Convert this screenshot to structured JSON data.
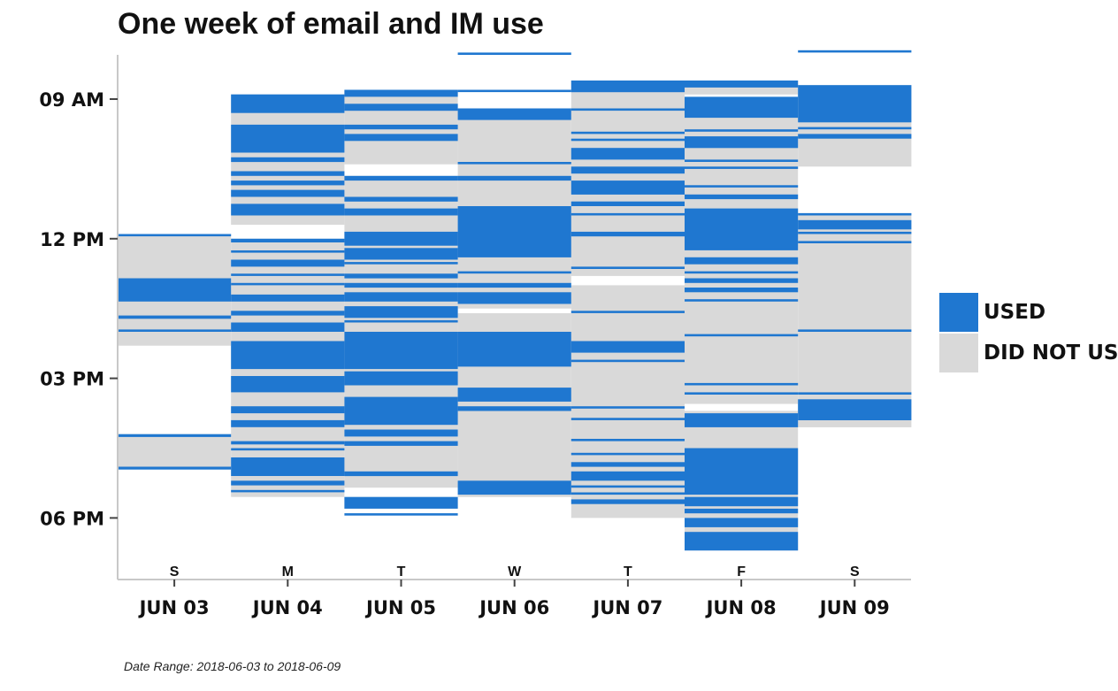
{
  "chart_data": {
    "type": "heatmap",
    "title": "One week of email and IM use",
    "caption": "Date Range: 2018-06-03 to 2018-06-09",
    "y_ticks": [
      "09 AM",
      "12 PM",
      "03 PM",
      "06 PM"
    ],
    "y_range_hours": [
      7.8,
      19.3
    ],
    "legend_position": "right",
    "legend": [
      {
        "label": "USED",
        "color": "#1f77d0"
      },
      {
        "label": "DID NOT USE",
        "color": "#d9d9d9"
      }
    ],
    "days": [
      {
        "weekday": "S",
        "date": "JUN 03",
        "grey": [
          [
            11.9,
            14.3
          ],
          [
            16.2,
            16.9
          ]
        ],
        "used": [
          [
            11.9,
            11.95
          ],
          [
            12.85,
            13.35
          ],
          [
            13.65,
            13.72
          ],
          [
            13.95,
            14.0
          ],
          [
            16.2,
            16.26
          ],
          [
            16.9,
            16.96
          ]
        ]
      },
      {
        "weekday": "M",
        "date": "JUN 04",
        "grey": [
          [
            8.9,
            11.7
          ],
          [
            12.0,
            17.55
          ]
        ],
        "used": [
          [
            8.9,
            9.3
          ],
          [
            9.55,
            10.15
          ],
          [
            10.25,
            10.35
          ],
          [
            10.55,
            10.65
          ],
          [
            10.75,
            10.85
          ],
          [
            10.95,
            11.1
          ],
          [
            11.25,
            11.5
          ],
          [
            12.0,
            12.08
          ],
          [
            12.25,
            12.3
          ],
          [
            12.45,
            12.6
          ],
          [
            12.75,
            12.8
          ],
          [
            12.95,
            13.0
          ],
          [
            13.2,
            13.35
          ],
          [
            13.55,
            13.65
          ],
          [
            13.8,
            14.0
          ],
          [
            14.2,
            14.8
          ],
          [
            14.95,
            15.3
          ],
          [
            15.6,
            15.75
          ],
          [
            15.9,
            16.05
          ],
          [
            16.35,
            16.42
          ],
          [
            16.5,
            16.55
          ],
          [
            16.7,
            17.1
          ],
          [
            17.2,
            17.3
          ],
          [
            17.4,
            17.45
          ]
        ]
      },
      {
        "weekday": "T",
        "date": "JUN 05",
        "grey": [
          [
            8.8,
            10.4
          ],
          [
            10.65,
            17.35
          ],
          [
            17.55,
            17.8
          ]
        ],
        "used": [
          [
            8.8,
            8.95
          ],
          [
            9.1,
            9.25
          ],
          [
            9.55,
            9.65
          ],
          [
            9.75,
            9.9
          ],
          [
            10.65,
            10.75
          ],
          [
            11.1,
            11.2
          ],
          [
            11.35,
            11.5
          ],
          [
            11.85,
            12.15
          ],
          [
            12.2,
            12.45
          ],
          [
            12.5,
            12.55
          ],
          [
            12.75,
            12.85
          ],
          [
            12.95,
            13.05
          ],
          [
            13.15,
            13.35
          ],
          [
            13.45,
            13.7
          ],
          [
            13.75,
            13.8
          ],
          [
            14.0,
            14.8
          ],
          [
            14.85,
            15.15
          ],
          [
            15.4,
            16.0
          ],
          [
            16.1,
            16.25
          ],
          [
            16.35,
            16.45
          ],
          [
            17.0,
            17.1
          ],
          [
            17.55,
            17.8
          ],
          [
            17.9,
            17.95
          ]
        ]
      },
      {
        "weekday": "W",
        "date": "JUN 06",
        "grey": [
          [
            9.2,
            13.5
          ],
          [
            13.6,
            17.55
          ]
        ],
        "used": [
          [
            8.0,
            8.05
          ],
          [
            8.8,
            8.85
          ],
          [
            9.2,
            9.45
          ],
          [
            10.35,
            10.4
          ],
          [
            10.65,
            10.75
          ],
          [
            11.3,
            12.4
          ],
          [
            12.7,
            12.75
          ],
          [
            12.95,
            13.05
          ],
          [
            13.15,
            13.4
          ],
          [
            14.0,
            14.75
          ],
          [
            15.2,
            15.5
          ],
          [
            15.6,
            15.7
          ],
          [
            17.2,
            17.5
          ]
        ]
      },
      {
        "weekday": "T",
        "date": "JUN 07",
        "grey": [
          [
            8.6,
            12.8
          ],
          [
            13.0,
            18.0
          ]
        ],
        "used": [
          [
            8.6,
            8.85
          ],
          [
            9.2,
            9.25
          ],
          [
            9.7,
            9.75
          ],
          [
            9.85,
            9.9
          ],
          [
            10.05,
            10.3
          ],
          [
            10.45,
            10.6
          ],
          [
            10.75,
            11.05
          ],
          [
            11.2,
            11.3
          ],
          [
            11.45,
            11.5
          ],
          [
            11.85,
            11.95
          ],
          [
            12.6,
            12.65
          ],
          [
            13.55,
            13.6
          ],
          [
            14.2,
            14.45
          ],
          [
            14.6,
            14.65
          ],
          [
            15.6,
            15.65
          ],
          [
            15.85,
            15.9
          ],
          [
            16.3,
            16.35
          ],
          [
            16.6,
            16.65
          ],
          [
            16.8,
            16.9
          ],
          [
            17.0,
            17.2
          ],
          [
            17.3,
            17.35
          ],
          [
            17.45,
            17.5
          ],
          [
            17.6,
            17.7
          ]
        ]
      },
      {
        "weekday": "F",
        "date": "JUN 08",
        "grey": [
          [
            8.6,
            8.9
          ],
          [
            9.05,
            15.55
          ],
          [
            15.7,
            18.7
          ]
        ],
        "used": [
          [
            8.6,
            8.75
          ],
          [
            8.95,
            9.4
          ],
          [
            9.65,
            9.7
          ],
          [
            9.8,
            10.05
          ],
          [
            10.3,
            10.35
          ],
          [
            10.45,
            10.5
          ],
          [
            10.85,
            10.9
          ],
          [
            11.05,
            11.15
          ],
          [
            11.35,
            12.25
          ],
          [
            12.4,
            12.55
          ],
          [
            12.7,
            12.75
          ],
          [
            12.85,
            12.95
          ],
          [
            13.05,
            13.15
          ],
          [
            13.3,
            13.35
          ],
          [
            14.05,
            14.1
          ],
          [
            15.1,
            15.15
          ],
          [
            15.3,
            15.35
          ],
          [
            15.75,
            16.05
          ],
          [
            16.5,
            17.5
          ],
          [
            17.55,
            17.75
          ],
          [
            17.8,
            17.9
          ],
          [
            18.0,
            18.2
          ],
          [
            18.3,
            18.7
          ]
        ]
      },
      {
        "weekday": "S",
        "date": "JUN 09",
        "grey": [
          [
            8.7,
            10.45
          ],
          [
            11.45,
            16.05
          ]
        ],
        "used": [
          [
            7.95,
            8.0
          ],
          [
            8.7,
            9.5
          ],
          [
            9.6,
            9.65
          ],
          [
            9.75,
            9.85
          ],
          [
            11.45,
            11.5
          ],
          [
            11.6,
            11.8
          ],
          [
            11.85,
            11.9
          ],
          [
            12.05,
            12.1
          ],
          [
            13.95,
            14.0
          ],
          [
            15.3,
            15.35
          ],
          [
            15.45,
            15.9
          ]
        ]
      }
    ]
  }
}
